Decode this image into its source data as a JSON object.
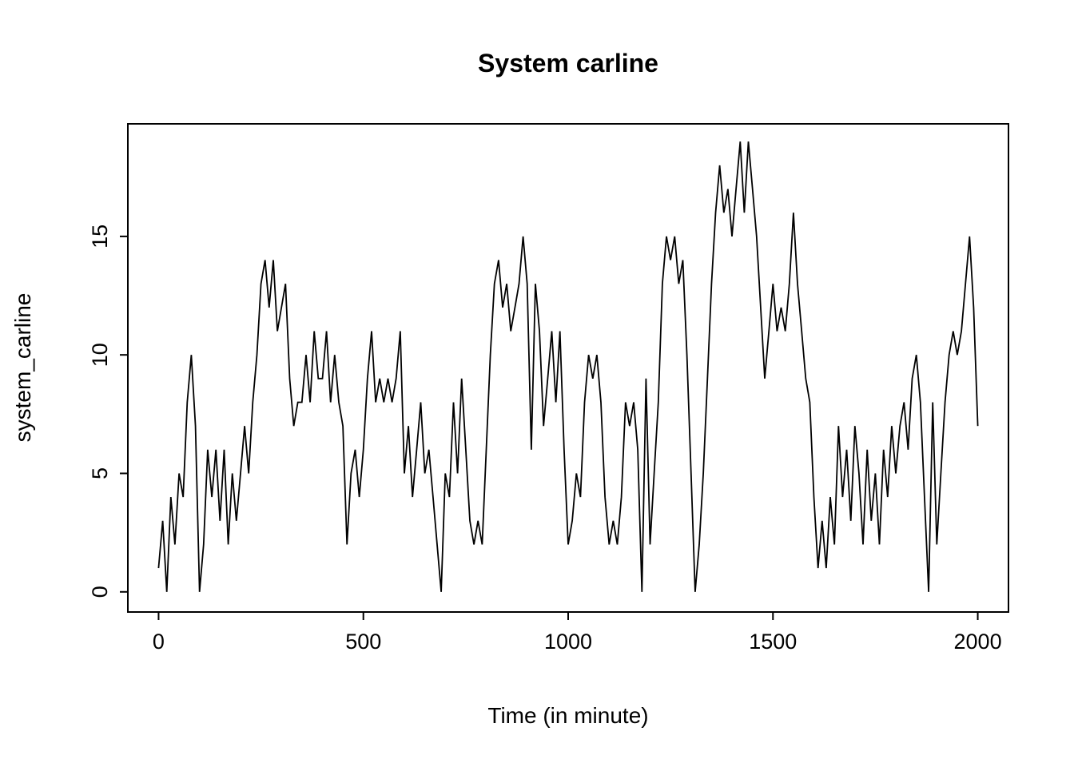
{
  "chart_data": {
    "type": "line",
    "title": "System carline",
    "xlabel": "Time (in minute)",
    "ylabel": "system_carline",
    "x_ticks": [
      0,
      500,
      1000,
      1500,
      2000
    ],
    "y_ticks": [
      0,
      5,
      10,
      15
    ],
    "xlim": [
      -75,
      2075
    ],
    "ylim": [
      -0.85,
      19.75
    ],
    "grid": false,
    "legend": "none",
    "line_color": "#000000",
    "background_color": "#ffffff",
    "series": [
      {
        "name": "system_carline",
        "x": [
          0,
          10,
          20,
          30,
          40,
          50,
          60,
          70,
          80,
          90,
          100,
          110,
          120,
          130,
          140,
          150,
          160,
          170,
          180,
          190,
          200,
          210,
          220,
          230,
          240,
          250,
          260,
          270,
          280,
          290,
          300,
          310,
          320,
          330,
          340,
          350,
          360,
          370,
          380,
          390,
          400,
          410,
          420,
          430,
          440,
          450,
          460,
          470,
          480,
          490,
          500,
          510,
          520,
          530,
          540,
          550,
          560,
          570,
          580,
          590,
          600,
          610,
          620,
          630,
          640,
          650,
          660,
          670,
          680,
          690,
          700,
          710,
          720,
          730,
          740,
          750,
          760,
          770,
          780,
          790,
          800,
          810,
          820,
          830,
          840,
          850,
          860,
          870,
          880,
          890,
          900,
          910,
          920,
          930,
          940,
          950,
          960,
          970,
          980,
          990,
          1000,
          1010,
          1020,
          1030,
          1040,
          1050,
          1060,
          1070,
          1080,
          1090,
          1100,
          1110,
          1120,
          1130,
          1140,
          1150,
          1160,
          1170,
          1180,
          1190,
          1200,
          1210,
          1220,
          1230,
          1240,
          1250,
          1260,
          1270,
          1280,
          1290,
          1300,
          1310,
          1320,
          1330,
          1340,
          1350,
          1360,
          1370,
          1380,
          1390,
          1400,
          1410,
          1420,
          1430,
          1440,
          1450,
          1460,
          1470,
          1480,
          1490,
          1500,
          1510,
          1520,
          1530,
          1540,
          1550,
          1560,
          1570,
          1580,
          1590,
          1600,
          1610,
          1620,
          1630,
          1640,
          1650,
          1660,
          1670,
          1680,
          1690,
          1700,
          1710,
          1720,
          1730,
          1740,
          1750,
          1760,
          1770,
          1780,
          1790,
          1800,
          1810,
          1820,
          1830,
          1840,
          1850,
          1860,
          1870,
          1880,
          1890,
          1900,
          1910,
          1920,
          1930,
          1940,
          1950,
          1960,
          1970,
          1980,
          1990,
          2000
        ],
        "y": [
          1,
          3,
          0,
          4,
          2,
          5,
          4,
          8,
          10,
          7,
          0,
          2,
          6,
          4,
          6,
          3,
          6,
          2,
          5,
          3,
          5,
          7,
          5,
          8,
          10,
          13,
          14,
          12,
          14,
          11,
          12,
          13,
          9,
          7,
          8,
          8,
          10,
          8,
          11,
          9,
          9,
          11,
          8,
          10,
          8,
          7,
          2,
          5,
          6,
          4,
          6,
          9,
          11,
          8,
          9,
          8,
          9,
          8,
          9,
          11,
          5,
          7,
          4,
          6,
          8,
          5,
          6,
          4,
          2,
          0,
          5,
          4,
          8,
          5,
          9,
          6,
          3,
          2,
          3,
          2,
          6,
          10,
          13,
          14,
          12,
          13,
          11,
          12,
          13,
          15,
          13,
          6,
          13,
          11,
          7,
          9,
          11,
          8,
          11,
          6,
          2,
          3,
          5,
          4,
          8,
          10,
          9,
          10,
          8,
          4,
          2,
          3,
          2,
          4,
          8,
          7,
          8,
          6,
          0,
          9,
          2,
          5,
          8,
          13,
          15,
          14,
          15,
          13,
          14,
          10,
          5,
          0,
          2,
          5,
          9,
          13,
          16,
          18,
          16,
          17,
          15,
          17,
          19,
          16,
          19,
          17,
          15,
          12,
          9,
          11,
          13,
          11,
          12,
          11,
          13,
          16,
          13,
          11,
          9,
          8,
          4,
          1,
          3,
          1,
          4,
          2,
          7,
          4,
          6,
          3,
          7,
          5,
          2,
          6,
          3,
          5,
          2,
          6,
          4,
          7,
          5,
          7,
          8,
          6,
          9,
          10,
          8,
          4,
          0,
          8,
          2,
          5,
          8,
          10,
          11,
          10,
          11,
          13,
          15,
          12,
          7
        ]
      }
    ]
  }
}
